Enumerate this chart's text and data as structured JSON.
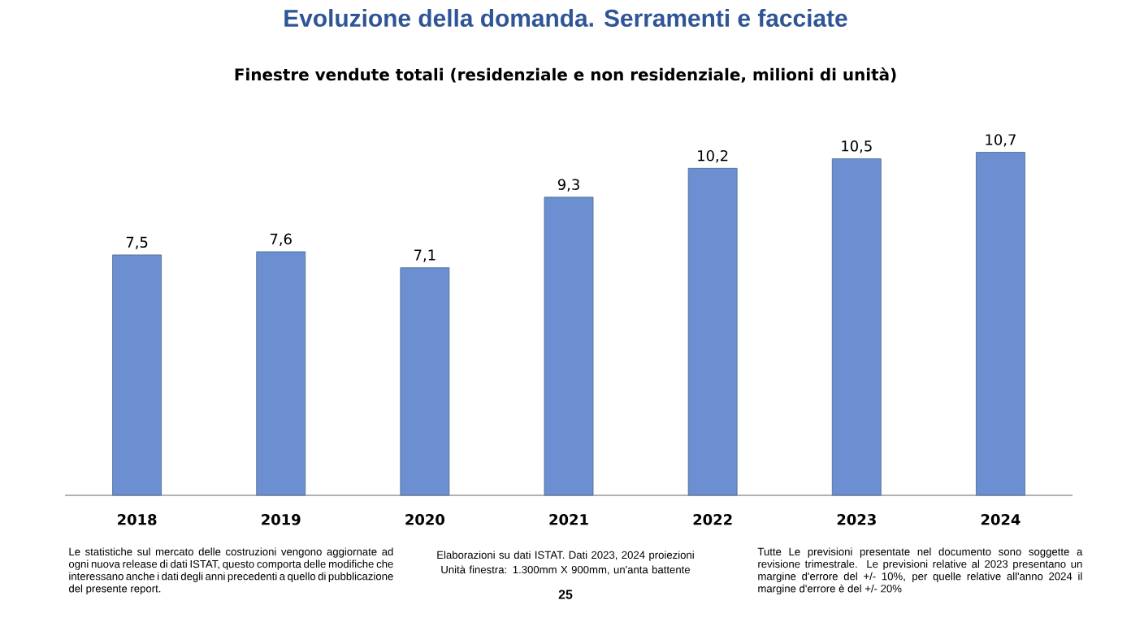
{
  "chart_data": {
    "type": "bar",
    "title": "Evoluzione della domanda. Serramenti e facciate",
    "subtitle": "Finestre vendute totali (residenziale e non residenziale, milioni di unità)",
    "categories": [
      "2018",
      "2019",
      "2020",
      "2021",
      "2022",
      "2023",
      "2024"
    ],
    "values": [
      7.5,
      7.6,
      7.1,
      9.3,
      10.2,
      10.5,
      10.7
    ],
    "value_labels": [
      "7,5",
      "7,6",
      "7,1",
      "9,3",
      "10,2",
      "10,5",
      "10,7"
    ],
    "color": "#6b8fd0",
    "annotations": [
      "Le statistiche sul mercato delle costruzioni vengono aggiornate ad ogni nuova release di dati ISTAT, questo comporta delle modifiche che interessano anche i dati degli anni precedenti a quello di pubblicazione del presente report.",
      "Elaborazioni su dati ISTAT. Dati 2023, 2024 proiezioni",
      "Unità finestra: 1.300mm X 900mm, un'anta battente",
      "25",
      "Tutte Le previsioni presentate nel documento sono soggette a revisione trimestrale. Le previsioni relative al 2023 presentano un margine d'errore del +/- 10%, per quelle relative all'anno 2024 il margine d'errore è del +/- 20%"
    ]
  }
}
